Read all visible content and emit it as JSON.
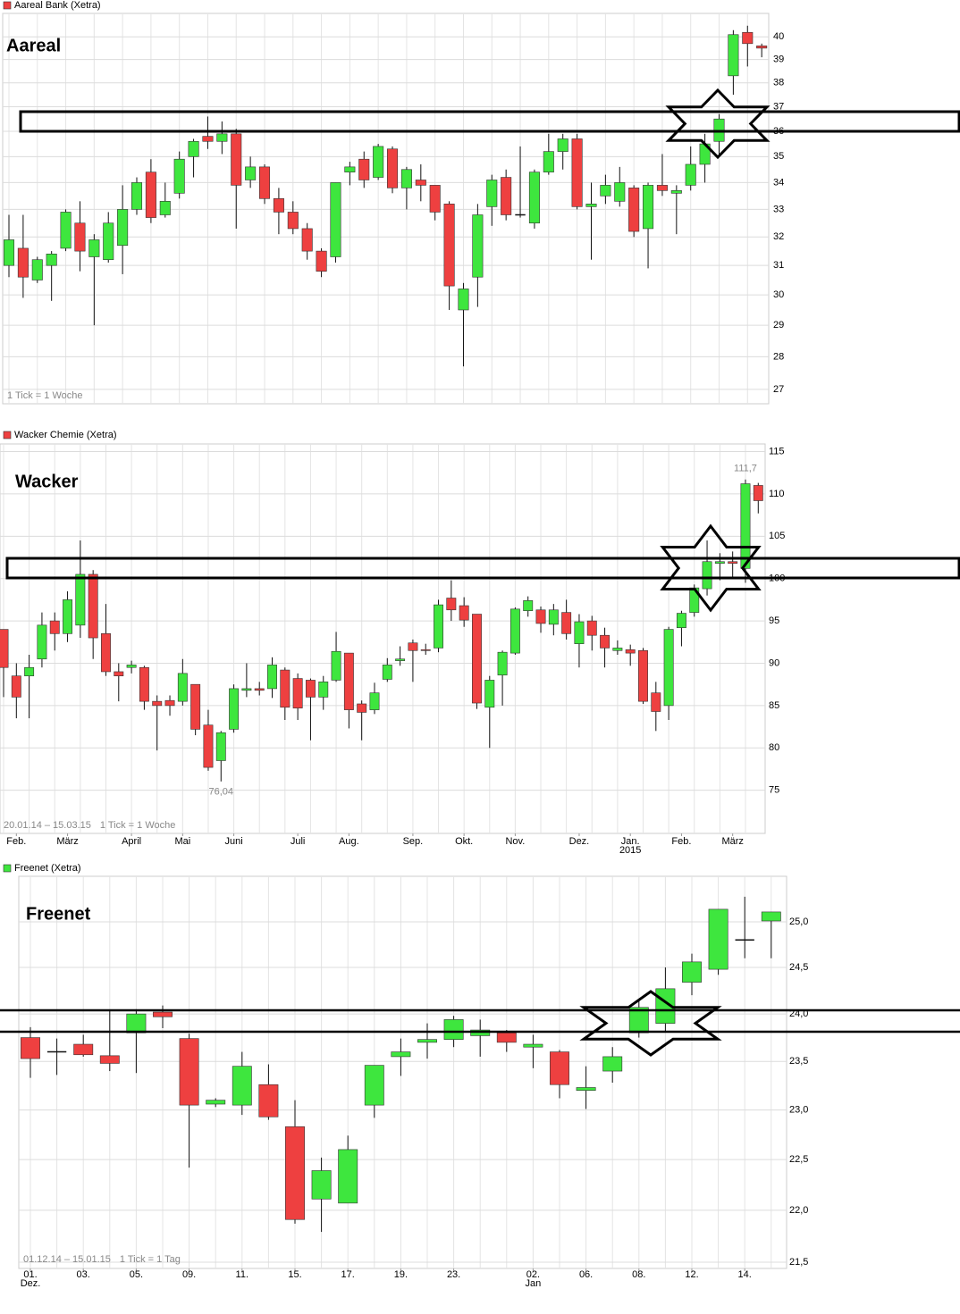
{
  "chart_data": [
    {
      "type": "candlestick",
      "title": "Aareal Bank (Xetra)",
      "label": "Aareal",
      "notes": [
        "1 Tick = 1 Woche"
      ],
      "log_scale": true,
      "grid": true,
      "up_color": "#3ee63e",
      "down_color": "#ee4040",
      "ylim": [
        26.57,
        41.06
      ],
      "yticks": [
        27,
        28,
        29,
        30,
        31,
        32,
        33,
        34,
        35,
        36,
        37,
        38,
        39,
        40
      ],
      "open": [
        31.0,
        31.6,
        30.5,
        31.0,
        31.6,
        32.5,
        31.3,
        31.2,
        31.7,
        33.0,
        34.4,
        32.8,
        33.6,
        35.0,
        35.8,
        35.6,
        35.9,
        34.1,
        34.6,
        33.4,
        32.9,
        32.3,
        31.5,
        31.3,
        34.4,
        34.9,
        34.2,
        35.3,
        33.8,
        34.1,
        33.9,
        33.2,
        29.5,
        30.6,
        33.1,
        34.2,
        32.8,
        32.5,
        34.4,
        35.2,
        35.7,
        33.1,
        33.5,
        33.3,
        33.8,
        32.3,
        33.9,
        33.6,
        33.9,
        34.7,
        35.6,
        38.3,
        40.2,
        39.6
      ],
      "high": [
        32.8,
        32.8,
        31.3,
        31.5,
        33.0,
        33.3,
        32.1,
        32.9,
        33.9,
        34.2,
        34.9,
        34.0,
        35.2,
        35.7,
        36.6,
        36.4,
        36.1,
        35.0,
        34.7,
        33.8,
        33.3,
        32.5,
        31.6,
        34.0,
        34.8,
        35.2,
        35.5,
        35.4,
        34.6,
        34.7,
        33.9,
        33.3,
        30.4,
        33.2,
        34.3,
        34.5,
        35.4,
        34.5,
        35.9,
        35.9,
        35.9,
        34.0,
        34.3,
        34.6,
        33.9,
        34.0,
        35.1,
        33.9,
        35.4,
        35.9,
        36.7,
        40.3,
        40.5,
        39.7
      ],
      "low": [
        30.6,
        29.9,
        30.4,
        29.8,
        31.5,
        30.8,
        29.0,
        31.1,
        30.7,
        32.8,
        32.5,
        32.7,
        33.4,
        34.2,
        35.3,
        35.1,
        32.3,
        33.8,
        33.2,
        32.1,
        32.1,
        31.2,
        30.6,
        31.1,
        33.9,
        33.8,
        34.1,
        33.6,
        33.0,
        33.3,
        32.6,
        29.5,
        27.7,
        29.6,
        32.4,
        32.6,
        32.7,
        32.3,
        34.3,
        34.5,
        33.0,
        31.2,
        33.2,
        33.1,
        32.0,
        30.9,
        33.5,
        32.1,
        33.7,
        34.0,
        35.0,
        37.5,
        38.7,
        39.1
      ],
      "close": [
        31.9,
        30.6,
        31.2,
        31.4,
        32.9,
        31.5,
        31.9,
        32.5,
        33.0,
        34.0,
        32.7,
        33.3,
        34.9,
        35.6,
        35.6,
        35.9,
        33.9,
        34.6,
        33.4,
        32.9,
        32.3,
        31.5,
        30.8,
        34.0,
        34.6,
        34.1,
        35.4,
        33.8,
        34.5,
        33.9,
        32.9,
        30.3,
        30.2,
        32.8,
        34.1,
        32.8,
        32.8,
        34.4,
        35.2,
        35.7,
        33.1,
        33.2,
        33.9,
        34.0,
        32.2,
        33.9,
        33.7,
        33.7,
        34.7,
        35.5,
        36.5,
        40.1,
        39.7,
        39.5
      ]
    },
    {
      "type": "candlestick",
      "title": "Wacker Chemie (Xetra)",
      "label": "Wacker",
      "notes": [
        "20.01.14 – 15.03.15",
        "1 Tick = 1 Woche"
      ],
      "log_scale": false,
      "grid": true,
      "up_color": "#3ee63e",
      "down_color": "#ee4040",
      "ylim": [
        69.9,
        115.9
      ],
      "yticks": [
        75,
        80,
        85,
        90,
        95,
        100,
        105,
        110,
        115
      ],
      "xticks": [
        {
          "value": 1,
          "label": "Feb."
        },
        {
          "value": 5,
          "label": "März"
        },
        {
          "value": 10,
          "label": "April"
        },
        {
          "value": 14,
          "label": "Mai"
        },
        {
          "value": 18,
          "label": "Juni"
        },
        {
          "value": 23,
          "label": "Juli"
        },
        {
          "value": 27,
          "label": "Aug."
        },
        {
          "value": 32,
          "label": "Sep."
        },
        {
          "value": 36,
          "label": "Okt."
        },
        {
          "value": 40,
          "label": "Nov."
        },
        {
          "value": 45,
          "label": "Dez."
        },
        {
          "value": 49,
          "label": "Jan.",
          "sublabel": "2015"
        },
        {
          "value": 53,
          "label": "Feb."
        },
        {
          "value": 57,
          "label": "März"
        }
      ],
      "annotations": [
        {
          "value": 111.7,
          "label": "111,7"
        },
        {
          "value": 76.04,
          "label": "76,04"
        }
      ],
      "open": [
        94,
        88.5,
        88.5,
        90.5,
        95,
        93.5,
        94.5,
        100.5,
        93.5,
        89,
        89.5,
        89.5,
        85.5,
        85.6,
        85.5,
        87.5,
        82.7,
        78.5,
        82.2,
        86.8,
        87,
        87,
        89.2,
        88.2,
        88,
        86,
        88,
        91.2,
        85.2,
        84.5,
        88.1,
        90.3,
        92.4,
        91.6,
        91.8,
        97.7,
        96.8,
        95.8,
        84.8,
        88.6,
        91.2,
        96.2,
        96.3,
        94.6,
        96,
        92.3,
        95,
        93.3,
        91.5,
        91.6,
        91.5,
        86.5,
        85,
        94.2,
        96,
        98.8,
        101.8,
        102,
        101.2,
        111
      ],
      "high": [
        94,
        90,
        91,
        96,
        96,
        98.5,
        104.5,
        101,
        97,
        90,
        90.3,
        89.7,
        86.2,
        86.2,
        90.5,
        87.5,
        84.5,
        82,
        87.5,
        90,
        87.8,
        90.7,
        89.5,
        88.8,
        88.2,
        88.5,
        93.7,
        91.2,
        85.6,
        87.7,
        90.6,
        92,
        92.8,
        92.3,
        97.5,
        99.8,
        97.8,
        95.8,
        88.5,
        91.5,
        96.6,
        97.9,
        96.7,
        97,
        97.5,
        95.8,
        95.6,
        94.2,
        92.7,
        92.2,
        91.8,
        87.8,
        94.3,
        96.2,
        99.3,
        104.5,
        103,
        103.2,
        111.7,
        111.3
      ],
      "low": [
        86,
        83.5,
        83.5,
        89.5,
        91.5,
        92.5,
        93,
        90.5,
        88.5,
        85.5,
        88.8,
        84.5,
        79.7,
        83.8,
        85,
        81.5,
        77.3,
        76.04,
        81.8,
        86,
        86.2,
        85.9,
        83.3,
        83.3,
        80.9,
        84.5,
        87.8,
        82.3,
        80.9,
        84,
        87.8,
        89.7,
        87.8,
        91,
        91.3,
        95,
        94.3,
        84.6,
        80,
        85,
        91,
        95.5,
        93.6,
        93.3,
        92.8,
        89.5,
        91.5,
        89.5,
        91,
        89.7,
        85.2,
        82,
        83.3,
        92,
        95.5,
        98,
        99.8,
        100,
        99.5,
        107.7
      ],
      "close": [
        89.5,
        86,
        89.5,
        94.5,
        93.5,
        97.5,
        100.5,
        93,
        89,
        88.5,
        89.8,
        85.5,
        85,
        85,
        88.8,
        82.2,
        77.7,
        81.8,
        87,
        87,
        86.8,
        89.8,
        84.8,
        84.7,
        86,
        87.8,
        91.4,
        84.5,
        84.2,
        86.5,
        89.8,
        90.5,
        91.5,
        91.5,
        96.9,
        96.3,
        95.1,
        85.3,
        88,
        91.3,
        96.4,
        97.4,
        94.7,
        96.3,
        93.5,
        94.9,
        93.3,
        91.8,
        91.8,
        91.2,
        85.5,
        84.3,
        94,
        95.9,
        98.9,
        102,
        102,
        101.8,
        111.2,
        109.2
      ]
    },
    {
      "type": "candlestick",
      "title": "Freenet (Xetra)",
      "label": "Freenet",
      "notes": [
        "01.12.14 – 15.01.15",
        "1 Tick = 1 Tag"
      ],
      "log_scale": true,
      "grid": true,
      "up_color": "#3ee63e",
      "down_color": "#ee4040",
      "ylim": [
        21.44,
        25.51
      ],
      "yticks": [
        {
          "value": 21.5,
          "label": "21,5"
        },
        {
          "value": 22,
          "label": "22,0"
        },
        {
          "value": 22.5,
          "label": "22,5"
        },
        {
          "value": 23,
          "label": "23,0"
        },
        {
          "value": 23.5,
          "label": "23,5"
        },
        {
          "value": 24,
          "label": "24,0"
        },
        {
          "value": 24.5,
          "label": "24,5"
        },
        {
          "value": 25,
          "label": "25,0"
        }
      ],
      "xticks": [
        {
          "value": 0,
          "label": "01.",
          "sublabel": "Dez."
        },
        {
          "value": 2,
          "label": "03."
        },
        {
          "value": 4,
          "label": "05."
        },
        {
          "value": 6,
          "label": "09."
        },
        {
          "value": 8,
          "label": "11."
        },
        {
          "value": 10,
          "label": "15."
        },
        {
          "value": 12,
          "label": "17."
        },
        {
          "value": 14,
          "label": "19."
        },
        {
          "value": 16,
          "label": "23."
        },
        {
          "value": 19,
          "label": "02.",
          "sublabel": "Jan"
        },
        {
          "value": 21,
          "label": "06."
        },
        {
          "value": 23,
          "label": "08."
        },
        {
          "value": 25,
          "label": "12."
        },
        {
          "value": 27,
          "label": "14."
        }
      ],
      "open": [
        23.75,
        23.6,
        23.68,
        23.56,
        23.8,
        24.02,
        23.74,
        23.06,
        23.05,
        23.26,
        22.83,
        22.11,
        22.07,
        23.05,
        23.55,
        23.7,
        23.73,
        23.77,
        23.8,
        23.65,
        23.6,
        23.2,
        23.4,
        23.8,
        23.9,
        24.34,
        24.48,
        24.8,
        25.01
      ],
      "high": [
        23.86,
        23.74,
        23.78,
        24.04,
        24.05,
        24.09,
        23.79,
        23.12,
        23.6,
        23.47,
        23.1,
        22.52,
        22.74,
        23.46,
        23.74,
        23.9,
        23.98,
        23.94,
        23.83,
        23.78,
        23.62,
        23.45,
        23.65,
        24.15,
        24.5,
        24.65,
        25.14,
        25.28,
        25.11
      ],
      "low": [
        23.33,
        23.36,
        23.55,
        23.4,
        23.38,
        23.85,
        22.42,
        23.03,
        22.95,
        22.9,
        21.87,
        21.79,
        22.07,
        22.92,
        23.35,
        23.53,
        23.65,
        23.55,
        23.6,
        23.43,
        23.12,
        23.01,
        23.28,
        23.75,
        23.82,
        24.2,
        24.42,
        24.6,
        24.6
      ],
      "close": [
        23.53,
        23.6,
        23.57,
        23.48,
        24.0,
        23.97,
        23.05,
        23.1,
        23.45,
        22.93,
        21.91,
        22.39,
        22.6,
        23.46,
        23.6,
        23.73,
        23.94,
        23.83,
        23.7,
        23.68,
        23.26,
        23.23,
        23.55,
        24.07,
        24.27,
        24.56,
        25.14,
        24.8,
        25.11
      ]
    }
  ]
}
